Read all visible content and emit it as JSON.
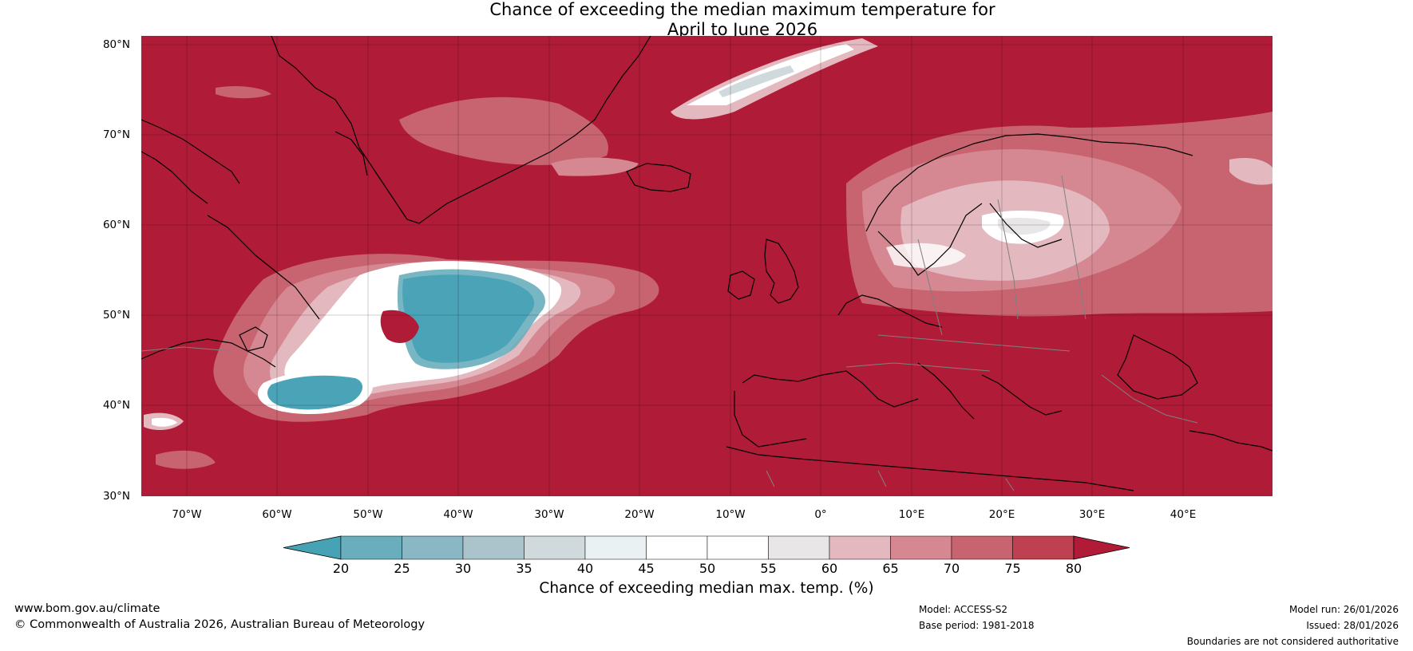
{
  "title": {
    "line1": "Chance of exceeding the median maximum temperature for",
    "line2": "April to June 2026"
  },
  "map": {
    "lat_labels": [
      "80°N",
      "70°N",
      "60°N",
      "50°N",
      "40°N",
      "30°N"
    ],
    "lon_labels": [
      "70°W",
      "60°W",
      "50°W",
      "40°W",
      "30°W",
      "20°W",
      "10°W",
      "0°",
      "10°E",
      "20°E",
      "30°E",
      "40°E"
    ],
    "background_color": "#b01b37"
  },
  "colorbar": {
    "ticks": [
      "20",
      "25",
      "30",
      "35",
      "40",
      "45",
      "50",
      "55",
      "60",
      "65",
      "70",
      "75",
      "80"
    ],
    "colors": [
      "#4aa3b7",
      "#6aaebd",
      "#89b7c4",
      "#abc4cc",
      "#d0d9dc",
      "#e9f1f2",
      "#ffffff",
      "#ffffff",
      "#e9e6e7",
      "#e3b8bf",
      "#d58892",
      "#c86370",
      "#bf4151"
    ],
    "low_color": "#45a3b5",
    "high_color": "#b11b37",
    "label": "Chance of exceeding median max. temp. (%)"
  },
  "footer": {
    "website": "www.bom.gov.au/climate",
    "copyright": "© Commonwealth of Australia 2026, Australian Bureau of Meteorology",
    "model": "Model: ACCESS-S2",
    "base_period": "Base period: 1981-2018",
    "model_run": "Model run: 26/01/2026",
    "issued": "Issued: 28/01/2026",
    "disclaimer": "Boundaries are not considered authoritative"
  }
}
